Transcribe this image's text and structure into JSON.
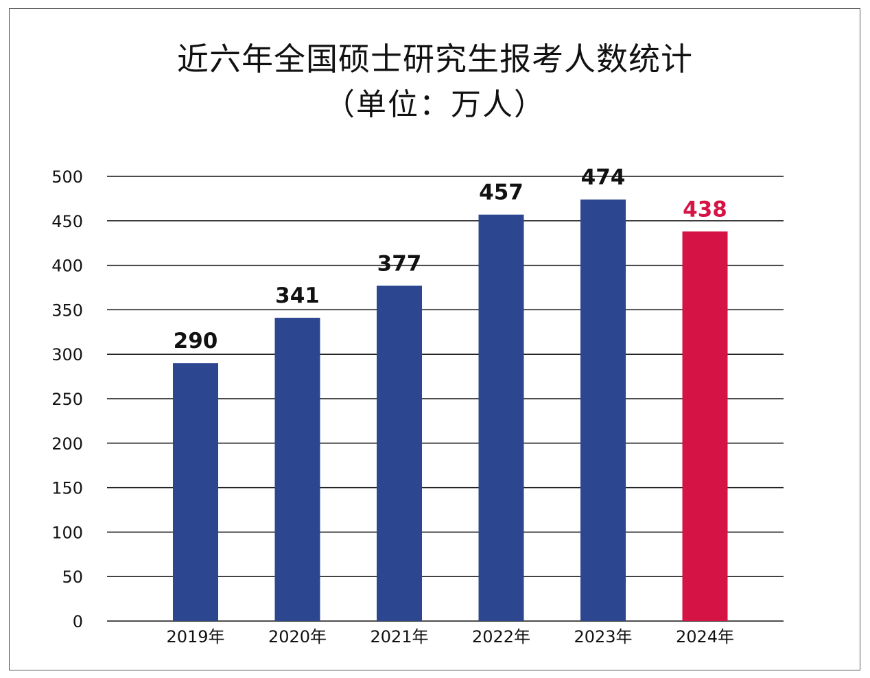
{
  "title_line1": "近六年全国硕士研究生报考人数统计",
  "title_line2": "（单位：万人）",
  "chart_data": {
    "type": "bar",
    "title": "近六年全国硕士研究生报考人数统计（单位：万人）",
    "categories": [
      "2019年",
      "2020年",
      "2021年",
      "2022年",
      "2023年",
      "2024年"
    ],
    "values": [
      290,
      341,
      377,
      457,
      474,
      438
    ],
    "data_labels": [
      "290",
      "341",
      "377",
      "457",
      "474",
      "438"
    ],
    "ylim": [
      0,
      500
    ],
    "yticks": [
      "0",
      "50",
      "100",
      "150",
      "200",
      "250",
      "300",
      "350",
      "400",
      "450",
      "500"
    ],
    "grid": true,
    "xlabel": "",
    "ylabel": "",
    "colors": {
      "default_bar": "#2c468f",
      "highlight_bar": "#d51445",
      "highlight_label": "#d51445",
      "label": "#111111",
      "grid": "#111111"
    },
    "highlight_index": 5
  }
}
